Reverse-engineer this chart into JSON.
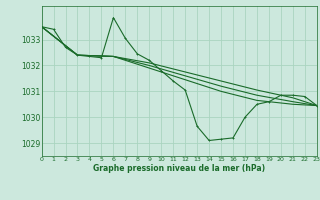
{
  "title": "Graphe pression niveau de la mer (hPa)",
  "bg_color": "#cce8dd",
  "grid_color": "#aad4c0",
  "line_color": "#1a6b2a",
  "x_min": 0,
  "x_max": 23,
  "y_min": 1028.5,
  "y_max": 1034.3,
  "yticks": [
    1029,
    1030,
    1031,
    1032,
    1033
  ],
  "xticks": [
    0,
    1,
    2,
    3,
    4,
    5,
    6,
    7,
    8,
    9,
    10,
    11,
    12,
    13,
    14,
    15,
    16,
    17,
    18,
    19,
    20,
    21,
    22,
    23
  ],
  "series1": [
    [
      0,
      1033.5
    ],
    [
      1,
      1033.4
    ],
    [
      2,
      1032.7
    ],
    [
      3,
      1032.4
    ],
    [
      4,
      1032.35
    ],
    [
      5,
      1032.3
    ],
    [
      6,
      1033.85
    ],
    [
      7,
      1033.05
    ],
    [
      8,
      1032.45
    ],
    [
      9,
      1032.2
    ],
    [
      10,
      1031.8
    ],
    [
      11,
      1031.4
    ],
    [
      12,
      1031.05
    ],
    [
      13,
      1029.65
    ],
    [
      14,
      1029.1
    ],
    [
      15,
      1029.15
    ],
    [
      16,
      1029.2
    ],
    [
      17,
      1030.0
    ],
    [
      18,
      1030.5
    ],
    [
      19,
      1030.6
    ],
    [
      20,
      1030.85
    ],
    [
      21,
      1030.85
    ],
    [
      22,
      1030.8
    ],
    [
      23,
      1030.45
    ]
  ],
  "series2": [
    [
      0,
      1033.5
    ],
    [
      3,
      1032.4
    ],
    [
      6,
      1032.35
    ],
    [
      9,
      1032.1
    ],
    [
      12,
      1031.75
    ],
    [
      15,
      1031.4
    ],
    [
      18,
      1031.05
    ],
    [
      21,
      1030.75
    ],
    [
      23,
      1030.45
    ]
  ],
  "series3": [
    [
      0,
      1033.5
    ],
    [
      3,
      1032.4
    ],
    [
      6,
      1032.35
    ],
    [
      9,
      1032.0
    ],
    [
      12,
      1031.6
    ],
    [
      15,
      1031.2
    ],
    [
      18,
      1030.85
    ],
    [
      21,
      1030.6
    ],
    [
      23,
      1030.45
    ]
  ],
  "series4": [
    [
      0,
      1033.5
    ],
    [
      3,
      1032.4
    ],
    [
      6,
      1032.35
    ],
    [
      9,
      1031.9
    ],
    [
      12,
      1031.45
    ],
    [
      15,
      1031.0
    ],
    [
      18,
      1030.65
    ],
    [
      21,
      1030.5
    ],
    [
      23,
      1030.45
    ]
  ]
}
